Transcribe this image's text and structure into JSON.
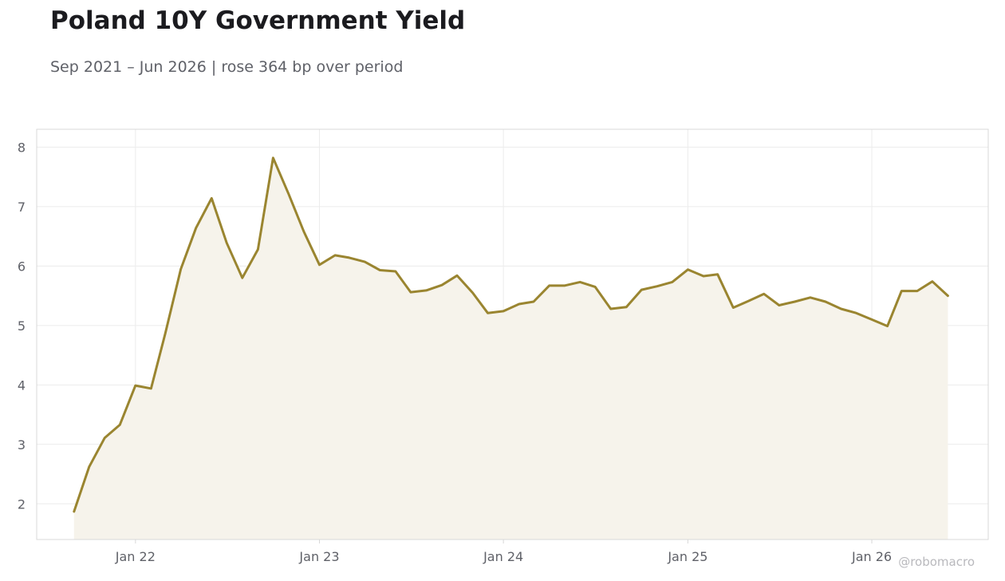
{
  "title": "Poland 10Y Government Yield",
  "subtitle": "Sep 2021 – Jun 2026 | rose 364 bp over period",
  "watermark": "@robomacro",
  "colors": {
    "line": "#9a8530",
    "fill": "#f6f3eb",
    "grid": "#ececec",
    "axis": "#d8d8d8",
    "tick_text": "#5f6168"
  },
  "chart_data": {
    "type": "area",
    "title": "Poland 10Y Government Yield",
    "subtitle": "Sep 2021 – Jun 2026 | rose 364 bp over period",
    "xlabel": "",
    "ylabel": "",
    "ylim": [
      1.4,
      8.3
    ],
    "xlim": [
      "2021-06-19",
      "2026-08-20"
    ],
    "grid": true,
    "legend": "none",
    "y_ticks": [
      2,
      3,
      4,
      5,
      6,
      7,
      8
    ],
    "x_ticks": [
      {
        "date": "2022-01-01",
        "label": "Jan 22"
      },
      {
        "date": "2023-01-01",
        "label": "Jan 23"
      },
      {
        "date": "2024-01-01",
        "label": "Jan 24"
      },
      {
        "date": "2025-01-01",
        "label": "Jan 25"
      },
      {
        "date": "2026-01-01",
        "label": "Jan 26"
      }
    ],
    "x": [
      "2021-09-01",
      "2021-10-01",
      "2021-11-01",
      "2021-12-01",
      "2022-01-01",
      "2022-02-01",
      "2022-03-01",
      "2022-04-01",
      "2022-05-01",
      "2022-06-01",
      "2022-07-01",
      "2022-08-01",
      "2022-09-01",
      "2022-10-01",
      "2022-11-01",
      "2022-12-01",
      "2023-01-01",
      "2023-02-01",
      "2023-03-01",
      "2023-04-01",
      "2023-05-01",
      "2023-06-01",
      "2023-07-01",
      "2023-08-01",
      "2023-09-01",
      "2023-10-01",
      "2023-11-01",
      "2023-12-01",
      "2024-01-01",
      "2024-02-01",
      "2024-03-01",
      "2024-04-01",
      "2024-05-01",
      "2024-06-01",
      "2024-07-01",
      "2024-08-01",
      "2024-09-01",
      "2024-10-01",
      "2024-11-01",
      "2024-12-01",
      "2025-01-01",
      "2025-02-01",
      "2025-03-01",
      "2025-04-01",
      "2025-05-01",
      "2025-06-01",
      "2025-07-01",
      "2025-08-01",
      "2025-09-01",
      "2025-10-01",
      "2025-11-01",
      "2025-12-01",
      "2026-01-01",
      "2026-02-01",
      "2026-03-01",
      "2026-04-01",
      "2026-05-01",
      "2026-06-01"
    ],
    "series": [
      {
        "values": [
          1.87,
          2.62,
          3.11,
          3.33,
          3.99,
          3.94,
          4.86,
          5.95,
          6.64,
          7.14,
          6.39,
          5.8,
          6.28,
          7.82,
          7.21,
          6.58,
          6.02,
          6.18,
          6.14,
          6.07,
          5.93,
          5.91,
          5.56,
          5.59,
          5.68,
          5.84,
          5.55,
          5.21,
          5.24,
          5.36,
          5.4,
          5.67,
          5.67,
          5.73,
          5.65,
          5.28,
          5.31,
          5.6,
          5.66,
          5.73,
          5.94,
          5.83,
          5.86,
          5.3,
          5.41,
          5.53,
          5.34,
          5.4,
          5.47,
          5.4,
          5.28,
          5.21,
          5.1,
          4.99,
          5.58,
          5.58,
          5.74,
          5.5
        ]
      }
    ]
  }
}
